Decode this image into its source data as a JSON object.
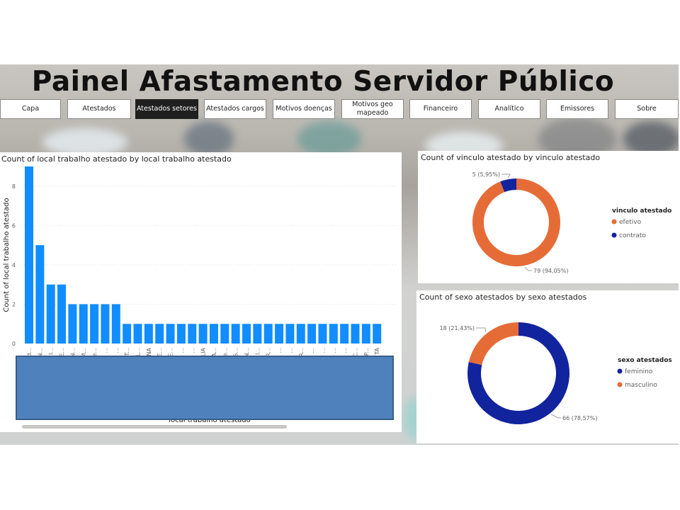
{
  "header": {
    "title": "Painel  Afastamento Servidor Público"
  },
  "nav": [
    {
      "label": "Capa"
    },
    {
      "label": "Atestados"
    },
    {
      "label": "Atestados setores",
      "active": true
    },
    {
      "label": "Atestados cargos"
    },
    {
      "label": "Motivos doenças"
    },
    {
      "label": "Motivos geo mapeado"
    },
    {
      "label": "Financeiro"
    },
    {
      "label": "Analítico"
    },
    {
      "label": "Emissores"
    },
    {
      "label": "Sobre"
    }
  ],
  "colors": {
    "bar": "#118dff",
    "efetivo": "#e66c37",
    "contrato": "#12239e",
    "feminino": "#12239e",
    "masculino": "#e66c37",
    "overlay": "#4f81bd"
  },
  "bar_panel": {
    "axis_x_partial": "local trabalho atestado"
  },
  "chart_data": [
    {
      "type": "bar",
      "title": "Count of local trabalho atestado by local trabalho atestado",
      "xlabel": "local trabalho atestado",
      "ylabel": "Count of local trabalho atestado",
      "ylim": [
        0,
        9
      ],
      "yticks": [
        0,
        2,
        4,
        6,
        8
      ],
      "grid": true,
      "categories": [
        "d...",
        "N...",
        "I...",
        "E...",
        "N...",
        "M...",
        "e...",
        "...",
        "...",
        "T...",
        "EL...",
        "NA",
        "E...",
        "E...",
        "...",
        "...",
        "LIA",
        "A...",
        "e...",
        "S...",
        "N...",
        "I...",
        "R...",
        "...",
        "...",
        "R...",
        "...",
        "...",
        "...",
        "...",
        "C...",
        "P...",
        "TA"
      ],
      "values": [
        9,
        5,
        3,
        3,
        2,
        2,
        2,
        2,
        2,
        1,
        1,
        1,
        1,
        1,
        1,
        1,
        1,
        1,
        1,
        1,
        1,
        1,
        1,
        1,
        1,
        1,
        1,
        1,
        1,
        1,
        1,
        1,
        1
      ]
    },
    {
      "type": "pie",
      "title": "Count of vinculo atestado by vinculo atestado",
      "legend_title": "vinculo atestado",
      "legend_position": "right",
      "slices": [
        {
          "label": "efetivo",
          "value": 79,
          "display": "79 (94,05%)"
        },
        {
          "label": "contrato",
          "value": 5,
          "display": "5 (5,95%)"
        }
      ]
    },
    {
      "type": "pie",
      "title": "Count of sexo atestados by sexo atestados",
      "legend_title": "sexo atestados",
      "legend_position": "right",
      "slices": [
        {
          "label": "feminino",
          "value": 66,
          "display": "66 (78,57%)"
        },
        {
          "label": "masculino",
          "value": 18,
          "display": "18 (21,43%)"
        }
      ]
    }
  ]
}
